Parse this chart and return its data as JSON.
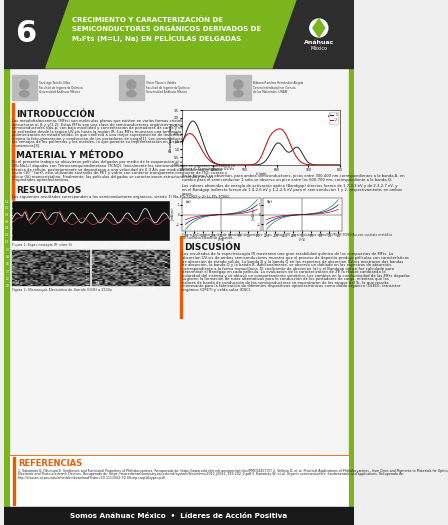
{
  "title_number": "6",
  "title_text": "CRECIMIENTO Y CARACTERIZACIÓN DE\nSEMICONDUCTORES ORGÁNICOS DERIVADOS DE\nM₂Fts (M=Li, Na) EN PELÍCULAS DELGADAS",
  "header_bg": "#7ab51d",
  "header_dark_bg": "#2d2d2d",
  "footer_text": "Somos Anáhuac México  •  Líderes de Acción Positiva",
  "footer_bg": "#1a1a1a",
  "body_bg": "#efefef",
  "orange_accent": "#e85d04",
  "green_accent": "#7ab51d",
  "intro_title": "INTRODUCCIÓN",
  "intro_body": "Las metaloftalocianinas (MFts) son moléculas planas que existen en varias formas cristalinas, incluidas las estructuras α, β y γ[1,2]. Estas MFts son una clase de semiconductores orgánicos que se clasifican como semiconductores tipo-p, con baja movilidad y concentración de portadores de carga y con bandas de absorción que se extienden desde la región UV-vis hasta la región IR. Las MFts muestran una tendencia hacia la agregación y polimerización en estado sólido, lo que conlleva a una mejor superposición de los orbitales entre las moléculas y mejora la foto-generación y conducción de los portadores de carga[1]. Los semiconductores a base de MFts combinan las ventajas de los polímeros y los metales, lo que permite su implementación en dispositivos innovadores económicos[3].",
  "method_title": "MATERIAL Y MÉTODO",
  "method_body": "En el presente trabajo se obtuvieron películas delgadas por medio de la evaporación al alto vacío de M₂FTs (M=Na,Li) dopadas con Tetracianoquinodimetano (TCNQ). Inicialmente los semiconductores se doparon utilizando la técnica de reflujo, posteriormente se depositaron a una velocidad de 0.3 Å/s por medio de sublimación al alto vacío (10⁻¹ torr), esto utilizando sustratos de PET y vidrio con contacto transparente conductor de ITO, cuarzo y silicio (Si) monocristalino. Finalmente, las películas delgadas se caracterizaron estructuralmente y en sus propiedades optoelectrónicas.",
  "results_title": "RESULTADOS",
  "results_body": "Los siguientes resultados corresponden a los semiconductores orgánicos, siendo 1) Na₂FTs-TCNQ y 2) Li₂FTs-TCNQ.",
  "discussion_title": "DISCUSIÓN",
  "discussion_body": "Los resultados de la espectroscopia IR mostraron una gran estabilidad química de los compuestos de MFts. La absorción UV-vis de ambos semiconductores muestra que el proceso de depósito produjo películas con características de absorción de estado sólido. La banda B y la banda Q en los espectros de absorción UV-vis mostraron dos bandas de absorción, la banda Q y la banda B. Adicionalmente, se observó un doblado en los espectros de absorción, correspondiente a la forma monoclínica. El coeficiente de absorción (α) y el Bandgap óptico fue calculado para determinar el Bandgap en cada película. La evaluación de la caracterización de 2V la realizó cambiando la polaridad del sistema y se obtuvo un comportamiento simétrico. Los cambios en la conductividad de las MFts dopadas sugieren la formación de rutas alternativas para la conducción de los portadores de carga, mientras que los valores de banda de conducción de los semiconductores se encontraron de los rangos del Si, lo que resulta interesante para la fabricación de diferentes dispositivos optoelectrónicos como diodo orgánico (OLED), transistor orgánico (OFET) y celda solar (DSC).",
  "references_title": "REFERENCIAS",
  "references_body": "1. Sakamoto K, Okumura E. Syntheses and Functional Properties of Phthalocyanines. Recuperado de: https://www.ncbi.nlm.nih.gov/pmc/articles/PMC5445737/\n2. Velônia D, et al. Practical Applications of Phthalocyanines - from Dyes and Pigments to Materials for Optics, Electronic and Photo-electronic Devices. Recuperado de: https://macedonianchemistry.uni.edu.mk/system/files/mhmc2012_j05e3_199-202_0.pdf\n3. Kawatsky W, et al. Organic semiconductors: fundamentals and applications. Recuperado de: http://classes.ul.psu.edu/emeddoc/download/?isbn=10.1111562:70.08-rep=rep1&type=pdf",
  "fig3_caption": "Figura 3: Espectroscopia UV-Vis",
  "fig4_caption": "Figura 4: Caracterización de densidad de corriente (J) vs. Voltaje (V) para el sistema vidrio/ITO/M₂FT-TCNQ/Au con sustrato metálico de contacto cátodo de 4 puntos.",
  "fig2_caption": "Figura 2: Microscopía Electrónica de Barrido (MEB) a 2500x",
  "fig1_caption": "Figura 1: Espectroscopia IR sobre Si"
}
